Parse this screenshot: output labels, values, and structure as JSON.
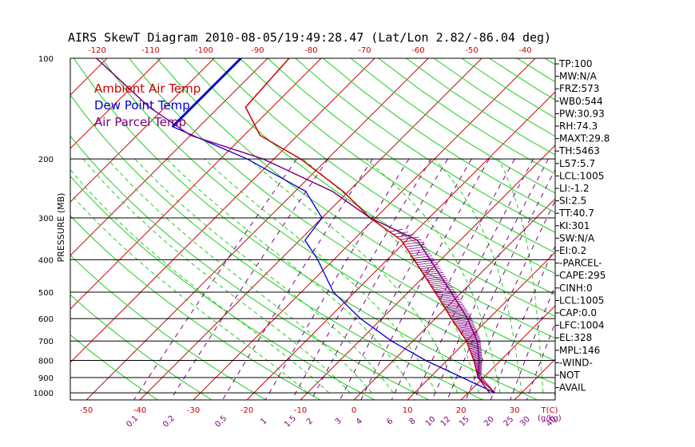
{
  "chart_data": {
    "type": "line",
    "title": "AIRS SkewT Diagram 2010-08-05/19:49:28.47 (Lat/Lon 2.82/-86.04 deg)",
    "ylabel": "PRESSURE (MB)",
    "y_scale": "log",
    "ylim": [
      1050,
      100
    ],
    "pressure_ticks": [
      "100",
      "200",
      "300",
      "400",
      "500",
      "600",
      "700",
      "800",
      "900",
      "1000"
    ],
    "bottom_temp_ticks": [
      "-50",
      "-40",
      "-30",
      "-20",
      "-10",
      "0",
      "10",
      "20",
      "30"
    ],
    "top_temp_ticks": [
      "-120",
      "-110",
      "-100",
      "-90",
      "-80",
      "-70",
      "-60",
      "-50",
      "-40"
    ],
    "mixing_ratio_ticks": [
      "0.1",
      "0.2",
      "0.5",
      "1",
      "1.5",
      "2",
      "3",
      "4",
      "6",
      "8",
      "10",
      "12",
      "15",
      "20",
      "25",
      "30",
      "40"
    ],
    "x_unit_label": "T(C)",
    "mixing_unit_label": "(g/kg)",
    "series": [
      {
        "name": "Ambient Air Temp",
        "color": "#cc0000",
        "points": [
          [
            100,
            -76
          ],
          [
            140,
            -75
          ],
          [
            170,
            -67
          ],
          [
            200,
            -55
          ],
          [
            250,
            -41
          ],
          [
            300,
            -31
          ],
          [
            350,
            -21
          ],
          [
            400,
            -15
          ],
          [
            500,
            -5
          ],
          [
            600,
            3
          ],
          [
            700,
            10
          ],
          [
            800,
            15
          ],
          [
            900,
            19
          ],
          [
            1000,
            25
          ]
        ]
      },
      {
        "name": "Dew Point Temp",
        "color": "#0000cc",
        "points": [
          [
            100,
            -85
          ],
          [
            160,
            -85
          ],
          [
            200,
            -65
          ],
          [
            250,
            -48
          ],
          [
            300,
            -40
          ],
          [
            350,
            -39
          ],
          [
            400,
            -33
          ],
          [
            500,
            -24
          ],
          [
            600,
            -14
          ],
          [
            700,
            -4
          ],
          [
            800,
            6
          ],
          [
            900,
            16
          ],
          [
            1000,
            25
          ]
        ]
      },
      {
        "name": "Air Parcel Temp",
        "color": "#800080",
        "points": [
          [
            100,
            -112
          ],
          [
            140,
            -93
          ],
          [
            170,
            -80
          ],
          [
            200,
            -62
          ],
          [
            250,
            -43
          ],
          [
            300,
            -31
          ],
          [
            350,
            -18
          ],
          [
            400,
            -12
          ],
          [
            500,
            -2
          ],
          [
            600,
            6
          ],
          [
            700,
            12
          ],
          [
            800,
            16
          ],
          [
            900,
            19
          ],
          [
            1000,
            24
          ]
        ]
      }
    ],
    "indices": [
      "TP:100",
      "MW:N/A",
      "FRZ:573",
      "WB0:544",
      "PW:30.93",
      "RH:74.3",
      "MAXT:29.8",
      "TH:5463",
      "L57:5.7",
      "LCL:1005",
      "LI:-1.2",
      "SI:2.5",
      "TT:40.7",
      "KI:301",
      "SW:N/A",
      "EI:0.2",
      "-PARCEL-",
      "CAPE:295",
      "CINH:0",
      "LCL:1005",
      "CAP:0.0",
      "LFC:1004",
      "EL:328",
      "MPL:146",
      "-WIND-",
      "NOT",
      "AVAIL"
    ]
  }
}
